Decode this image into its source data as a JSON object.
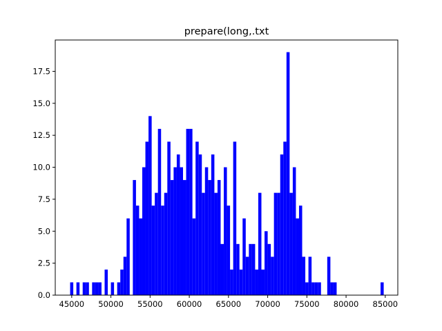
{
  "chart_data": {
    "type": "bar",
    "title": "prepare(long,.txt",
    "xlabel": "",
    "ylabel": "",
    "bin_width": 400,
    "bar_color": "#0000ff",
    "xlim": [
      42900,
      86600
    ],
    "ylim": [
      0,
      19.95
    ],
    "xticks": [
      45000,
      50000,
      55000,
      60000,
      65000,
      70000,
      75000,
      80000,
      85000
    ],
    "xtick_labels": [
      "45000",
      "50000",
      "55000",
      "60000",
      "65000",
      "70000",
      "75000",
      "80000",
      "85000"
    ],
    "yticks": [
      0,
      2.5,
      5,
      7.5,
      10,
      12.5,
      15,
      17.5
    ],
    "ytick_labels": [
      "0.0",
      "2.5",
      "5.0",
      "7.5",
      "10.0",
      "12.5",
      "15.0",
      "17.5"
    ],
    "x": [
      44800,
      45600,
      46400,
      46800,
      47600,
      48000,
      48400,
      49200,
      50000,
      50800,
      51200,
      51600,
      52000,
      52800,
      53200,
      53600,
      54000,
      54400,
      54800,
      55200,
      55600,
      56000,
      56400,
      56800,
      57200,
      57600,
      58000,
      58400,
      58800,
      59200,
      59600,
      60000,
      60400,
      60800,
      61200,
      61600,
      62000,
      62400,
      62800,
      63200,
      63600,
      64000,
      64400,
      64800,
      65200,
      65600,
      66000,
      66400,
      66800,
      67200,
      67600,
      68000,
      68400,
      68800,
      69200,
      69600,
      70000,
      70400,
      70800,
      71200,
      71600,
      72000,
      72400,
      72800,
      73200,
      73600,
      74000,
      74400,
      74800,
      75200,
      75600,
      76000,
      76400,
      77600,
      78000,
      78400,
      84400
    ],
    "values": [
      1,
      1,
      1,
      1,
      1,
      1,
      1,
      2,
      1,
      1,
      2,
      3,
      6,
      9,
      7,
      6,
      10,
      12,
      14,
      7,
      8,
      13,
      7,
      8,
      12,
      9,
      10,
      11,
      10,
      9,
      13,
      13,
      6,
      12,
      11,
      8,
      10,
      9,
      11,
      8,
      9,
      4,
      10,
      7,
      2,
      12,
      4,
      2,
      6,
      3,
      4,
      4,
      2,
      8,
      2,
      5,
      4,
      3,
      8,
      8,
      11,
      12,
      19,
      8,
      10,
      6,
      7,
      3,
      1,
      3,
      1,
      1,
      1,
      3,
      1,
      1,
      1
    ]
  }
}
